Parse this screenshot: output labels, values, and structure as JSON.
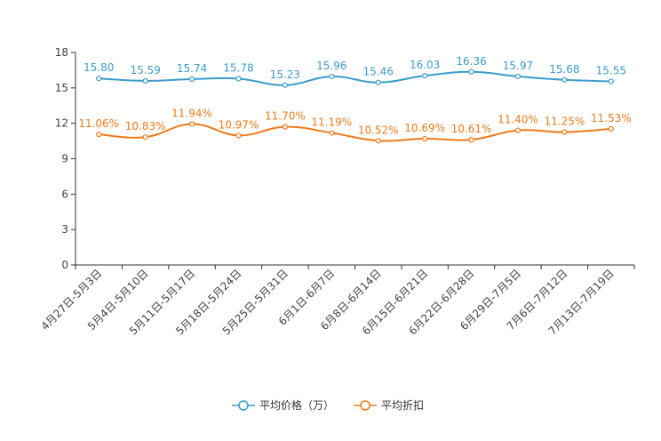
{
  "chart_data": {
    "type": "line",
    "categories": [
      "4月27日-5月3日",
      "5月4日-5月10日",
      "5月11日-5月17日",
      "5月18日-5月24日",
      "5月25日-5月31日",
      "6月1日-6月7日",
      "6月8日-6月14日",
      "6月15日-6月21日",
      "6月22日-6月28日",
      "6月29日-7月5日",
      "7月6日-7月12日",
      "7月13日-7月19日"
    ],
    "ylim": [
      0,
      18
    ],
    "yticks": [
      "0",
      "3",
      "6",
      "9",
      "12",
      "15",
      "18"
    ],
    "grid": false,
    "legend_position": "bottom-center",
    "series": [
      {
        "name": "平均价格（万）",
        "color": "#3b9ccd",
        "values": [
          15.8,
          15.59,
          15.74,
          15.78,
          15.23,
          15.96,
          15.46,
          16.03,
          16.36,
          15.97,
          15.68,
          15.55
        ],
        "labels": [
          "15.80",
          "15.59",
          "15.74",
          "15.78",
          "15.23",
          "15.96",
          "15.46",
          "16.03",
          "16.36",
          "15.97",
          "15.68",
          "15.55"
        ]
      },
      {
        "name": "平均折扣",
        "color": "#f07a1a",
        "values": [
          11.06,
          10.83,
          11.94,
          10.97,
          11.7,
          11.19,
          10.52,
          10.69,
          10.61,
          11.4,
          11.25,
          11.53
        ],
        "labels": [
          "11.06%",
          "10.83%",
          "11.94%",
          "10.97%",
          "11.70%",
          "11.19%",
          "10.52%",
          "10.69%",
          "10.61%",
          "11.40%",
          "11.25%",
          "11.53%"
        ]
      }
    ]
  }
}
